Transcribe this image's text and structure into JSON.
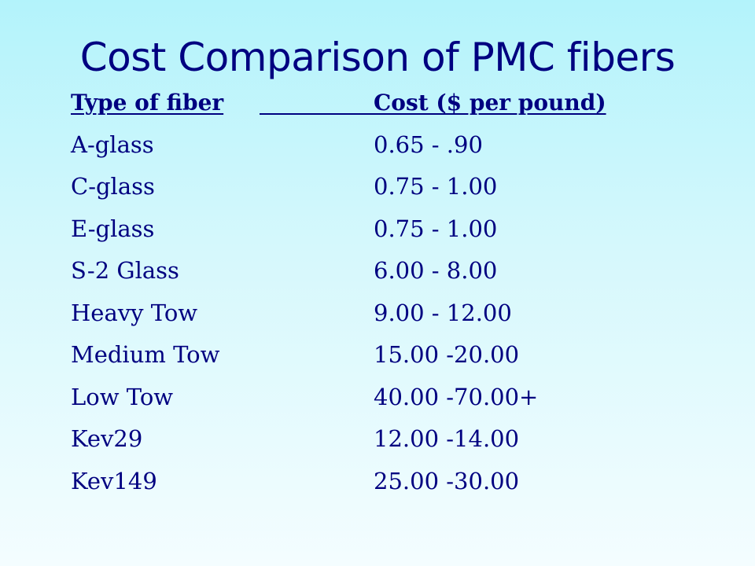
{
  "slide": {
    "title": "Cost Comparison of PMC fibers"
  },
  "table": {
    "headers": {
      "fiber": "Type of fiber",
      "cost": "Cost ($ per pound)"
    },
    "rows": [
      {
        "fiber": "A-glass",
        "cost": "0.65 - .90"
      },
      {
        "fiber": "C-glass",
        "cost": "0.75 - 1.00"
      },
      {
        "fiber": "E-glass",
        "cost": "0.75 - 1.00"
      },
      {
        "fiber": "S-2 Glass",
        "cost": "6.00 - 8.00"
      },
      {
        "fiber": "Heavy Tow",
        "cost": "9.00 - 12.00"
      },
      {
        "fiber": "Medium Tow",
        "cost": "15.00 -20.00"
      },
      {
        "fiber": "Low Tow",
        "cost": "40.00 -70.00+"
      },
      {
        "fiber": "Kev29",
        "cost": "12.00 -14.00"
      },
      {
        "fiber": "Kev149",
        "cost": "25.00 -30.00"
      }
    ]
  },
  "colors": {
    "text": "#000080",
    "background_top": "#b3f3fb",
    "background_bottom": "#f4fdff"
  }
}
